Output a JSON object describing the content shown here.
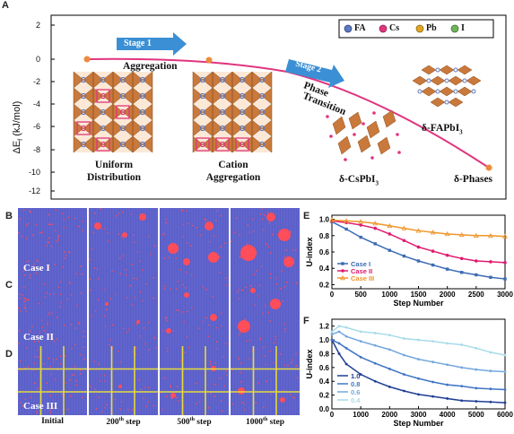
{
  "panels": {
    "a": "A",
    "b": "B",
    "c": "C",
    "d": "D",
    "e": "E",
    "f": "F"
  },
  "panel_a": {
    "ylabel_main": "ΔE",
    "ylabel_sub": "f",
    "ylabel_unit": "(kJ/mol)",
    "yticks": [
      "2",
      "0",
      "-2",
      "-4",
      "-6",
      "-8",
      "-10",
      "-12"
    ],
    "stage1": "Stage 1",
    "stage2": "Stage 2",
    "aggregation": "Aggregation",
    "phase": "Phase",
    "transition": "Transition",
    "uniform1": "Uniform",
    "uniform2": "Distribution",
    "cation1": "Cation",
    "cation2": "Aggregation",
    "csp_prefix": "δ-CsPbI",
    "csp_sub": "3",
    "fap_prefix": "δ-FAPbI",
    "fap_sub": "3",
    "phases": "δ-Phases",
    "legend": [
      {
        "label": "FA",
        "color": "#5d79c0"
      },
      {
        "label": "Cs",
        "color": "#e0357e"
      },
      {
        "label": "Pb",
        "color": "#e0a521"
      },
      {
        "label": "I",
        "color": "#6fb35a"
      }
    ]
  },
  "sim": {
    "cases": [
      "Case I",
      "Case II",
      "Case III"
    ],
    "steps": [
      {
        "main": "Initial",
        "sup": "",
        "rest": ""
      },
      {
        "main": "200",
        "sup": "th",
        "rest": " step"
      },
      {
        "main": "500",
        "sup": "th",
        "rest": " step"
      },
      {
        "main": "1000",
        "sup": "th",
        "rest": " step"
      }
    ]
  },
  "chart_data": [
    {
      "type": "line",
      "panel": "E",
      "xlabel": "Step Number",
      "ylabel": "U-index",
      "xlim": [
        0,
        3000
      ],
      "ylim": [
        0.15,
        1.05
      ],
      "xticks": [
        "0",
        "500",
        "1000",
        "1500",
        "2000",
        "2500",
        "3000"
      ],
      "yticks": [
        "0.2",
        "0.4",
        "0.6",
        "0.8",
        "1.0"
      ],
      "legend_position": "bottom-left",
      "series": [
        {
          "name": "Case I",
          "color": "#3b6bb4",
          "marker": "square",
          "x": [
            0,
            250,
            500,
            750,
            1000,
            1250,
            1500,
            1750,
            2000,
            2250,
            2500,
            2750,
            3000
          ],
          "y": [
            0.97,
            0.88,
            0.78,
            0.7,
            0.62,
            0.55,
            0.49,
            0.44,
            0.39,
            0.35,
            0.32,
            0.29,
            0.27
          ]
        },
        {
          "name": "Case II",
          "color": "#e01a6f",
          "marker": "circle",
          "x": [
            0,
            250,
            500,
            750,
            1000,
            1250,
            1500,
            1750,
            2000,
            2250,
            2500,
            2750,
            3000
          ],
          "y": [
            0.98,
            0.96,
            0.93,
            0.89,
            0.82,
            0.74,
            0.66,
            0.61,
            0.56,
            0.52,
            0.49,
            0.48,
            0.47
          ]
        },
        {
          "name": "Case III",
          "color": "#f0952a",
          "marker": "triangle",
          "x": [
            0,
            250,
            500,
            750,
            1000,
            1250,
            1500,
            1750,
            2000,
            2250,
            2500,
            2750,
            3000
          ],
          "y": [
            0.99,
            0.98,
            0.97,
            0.95,
            0.92,
            0.89,
            0.86,
            0.84,
            0.82,
            0.81,
            0.8,
            0.8,
            0.79
          ]
        }
      ]
    },
    {
      "type": "line",
      "panel": "F",
      "xlabel": "Step Number",
      "ylabel": "U-index",
      "xlim": [
        0,
        6000
      ],
      "ylim": [
        0.0,
        1.3
      ],
      "xticks": [
        "0",
        "1000",
        "2000",
        "3000",
        "4000",
        "5000",
        "6000"
      ],
      "yticks": [
        "0.0",
        "0.2",
        "0.4",
        "0.6",
        "0.8",
        "1.0",
        "1.2"
      ],
      "legend_position": "bottom-left",
      "series": [
        {
          "name": "1.0",
          "color": "#1f3e94",
          "x": [
            0,
            250,
            500,
            1000,
            1500,
            2000,
            2500,
            3000,
            3500,
            4000,
            4500,
            5000,
            5500,
            6000
          ],
          "y": [
            1.0,
            0.8,
            0.65,
            0.5,
            0.4,
            0.32,
            0.26,
            0.21,
            0.18,
            0.15,
            0.12,
            0.11,
            0.1,
            0.09
          ]
        },
        {
          "name": "0.8",
          "color": "#3f74c4",
          "x": [
            0,
            250,
            500,
            1000,
            1500,
            2000,
            2500,
            3000,
            3500,
            4000,
            4500,
            5000,
            5500,
            6000
          ],
          "y": [
            1.0,
            0.95,
            0.88,
            0.75,
            0.66,
            0.58,
            0.5,
            0.44,
            0.39,
            0.35,
            0.33,
            0.3,
            0.29,
            0.28
          ]
        },
        {
          "name": "0.6",
          "color": "#74a7dd",
          "x": [
            0,
            250,
            500,
            1000,
            1500,
            2000,
            2500,
            3000,
            3500,
            4000,
            4500,
            5000,
            5500,
            6000
          ],
          "y": [
            1.08,
            1.12,
            1.05,
            0.98,
            0.92,
            0.86,
            0.78,
            0.72,
            0.68,
            0.64,
            0.6,
            0.57,
            0.55,
            0.54
          ]
        },
        {
          "name": "0.4",
          "color": "#a9dbe9",
          "x": [
            0,
            250,
            500,
            1000,
            1500,
            2000,
            2500,
            3000,
            3500,
            4000,
            4500,
            5000,
            5500,
            6000
          ],
          "y": [
            1.12,
            1.2,
            1.18,
            1.12,
            1.1,
            1.07,
            1.02,
            1.0,
            0.98,
            0.95,
            0.93,
            0.88,
            0.82,
            0.78
          ]
        }
      ]
    }
  ]
}
